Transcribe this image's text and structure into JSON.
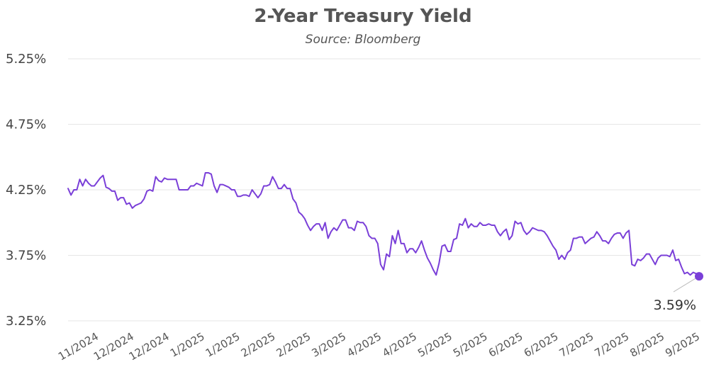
{
  "chart_data": {
    "type": "line",
    "title": "2-Year Treasury Yield",
    "subtitle": "Source: Bloomberg",
    "xlabel": "",
    "ylabel": "",
    "ylim": [
      3.25,
      5.25
    ],
    "y_ticks": [
      "5.25%",
      "4.75%",
      "4.25%",
      "3.75%",
      "3.25%"
    ],
    "y_tick_values": [
      5.25,
      4.75,
      4.25,
      3.75,
      3.25
    ],
    "x_tick_labels": [
      "11/2024",
      "12/2024",
      "12/2024",
      "1/2025",
      "1/2025",
      "2/2025",
      "2/2025",
      "3/2025",
      "4/2025",
      "4/2025",
      "5/2025",
      "5/2025",
      "6/2025",
      "6/2025",
      "7/2025",
      "7/2025",
      "8/2025",
      "9/2025"
    ],
    "grid": "horizontal",
    "line_color": "#7a3fd8",
    "end_value_label": "3.59%",
    "end_value": 3.59,
    "series": [
      {
        "values": [
          4.26,
          4.21,
          4.25,
          4.25,
          4.33,
          4.28,
          4.33,
          4.3,
          4.28,
          4.28,
          4.31,
          4.34,
          4.36,
          4.27,
          4.26,
          4.24,
          4.24,
          4.17,
          4.19,
          4.19,
          4.14,
          4.15,
          4.11,
          4.13,
          4.14,
          4.15,
          4.18,
          4.24,
          4.25,
          4.24,
          4.35,
          4.32,
          4.31,
          4.34,
          4.33,
          4.33,
          4.33,
          4.33,
          4.25,
          4.25,
          4.25,
          4.25,
          4.28,
          4.28,
          4.3,
          4.29,
          4.28,
          4.38,
          4.38,
          4.37,
          4.28,
          4.23,
          4.29,
          4.29,
          4.28,
          4.27,
          4.25,
          4.25,
          4.2,
          4.2,
          4.21,
          4.21,
          4.2,
          4.25,
          4.22,
          4.19,
          4.22,
          4.28,
          4.28,
          4.29,
          4.35,
          4.31,
          4.26,
          4.26,
          4.29,
          4.26,
          4.26,
          4.18,
          4.15,
          4.08,
          4.06,
          4.03,
          3.98,
          3.94,
          3.97,
          3.99,
          3.99,
          3.94,
          4.0,
          3.88,
          3.93,
          3.96,
          3.94,
          3.98,
          4.02,
          4.02,
          3.96,
          3.96,
          3.94,
          4.01,
          4.0,
          4.0,
          3.97,
          3.9,
          3.88,
          3.88,
          3.84,
          3.68,
          3.64,
          3.76,
          3.74,
          3.9,
          3.84,
          3.94,
          3.84,
          3.84,
          3.77,
          3.8,
          3.8,
          3.77,
          3.81,
          3.86,
          3.79,
          3.73,
          3.69,
          3.64,
          3.6,
          3.69,
          3.82,
          3.83,
          3.78,
          3.78,
          3.87,
          3.88,
          3.99,
          3.98,
          4.03,
          3.96,
          3.99,
          3.97,
          3.97,
          4.0,
          3.98,
          3.98,
          3.99,
          3.98,
          3.98,
          3.93,
          3.9,
          3.93,
          3.95,
          3.87,
          3.9,
          4.01,
          3.99,
          4.0,
          3.94,
          3.91,
          3.93,
          3.96,
          3.95,
          3.94,
          3.94,
          3.93,
          3.9,
          3.86,
          3.82,
          3.79,
          3.72,
          3.75,
          3.72,
          3.77,
          3.79,
          3.88,
          3.88,
          3.89,
          3.89,
          3.84,
          3.86,
          3.88,
          3.89,
          3.93,
          3.9,
          3.86,
          3.86,
          3.84,
          3.88,
          3.91,
          3.92,
          3.92,
          3.88,
          3.92,
          3.94,
          3.68,
          3.67,
          3.72,
          3.71,
          3.73,
          3.76,
          3.76,
          3.72,
          3.68,
          3.73,
          3.75,
          3.75,
          3.75,
          3.74,
          3.79,
          3.71,
          3.72,
          3.66,
          3.61,
          3.62,
          3.6,
          3.62,
          3.61,
          3.59
        ]
      }
    ]
  }
}
